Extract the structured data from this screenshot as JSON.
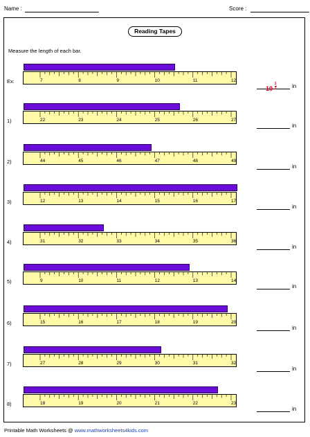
{
  "header": {
    "name_label": "Name :",
    "score_label": "Score :"
  },
  "title": "Reading Tapes",
  "instructions": "Measure the length of each bar.",
  "unit": "in",
  "example_answer": {
    "whole": "10",
    "num": "1",
    "den": "2"
  },
  "rows": [
    {
      "label": "Ex:",
      "start": 7,
      "bar_length": 3.5
    },
    {
      "label": "1)",
      "start": 22,
      "bar_length": 3.625
    },
    {
      "label": "2)",
      "start": 44,
      "bar_length": 2.875
    },
    {
      "label": "3)",
      "start": 12,
      "bar_length": 5.125
    },
    {
      "label": "4)",
      "start": 31,
      "bar_length": 1.625
    },
    {
      "label": "5)",
      "start": 9,
      "bar_length": 3.875
    },
    {
      "label": "6)",
      "start": 15,
      "bar_length": 4.875
    },
    {
      "label": "7)",
      "start": 27,
      "bar_length": 3.125
    },
    {
      "label": "8)",
      "start": 18,
      "bar_length": 4.625
    }
  ],
  "footer": {
    "prefix": "Printable Math Worksheets @ ",
    "url": "www.mathworksheets4kids.com"
  }
}
